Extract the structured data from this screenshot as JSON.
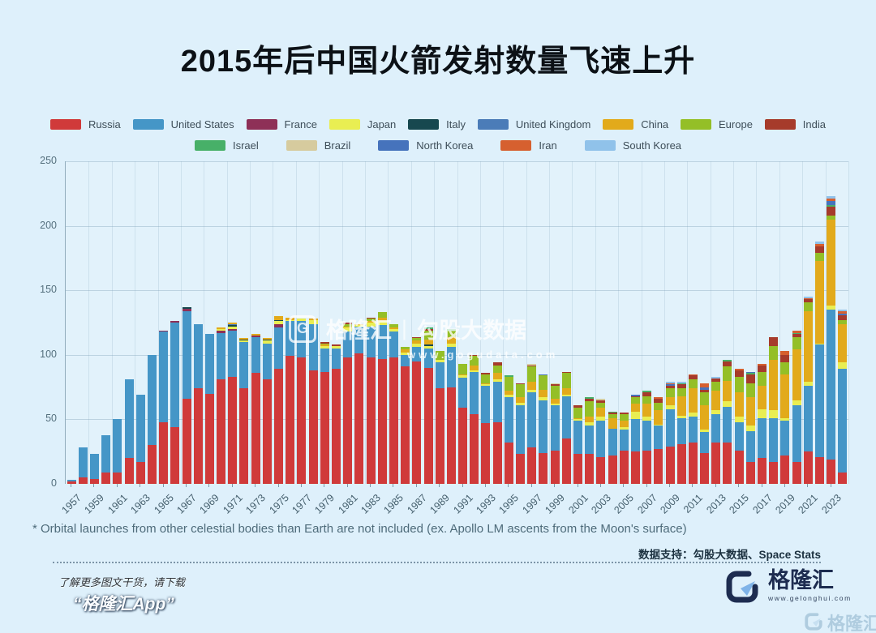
{
  "page": {
    "footnote": "* Orbital launches from other celestial bodies than Earth are not included (ex. Apollo LM ascents from the Moon's surface)",
    "data_support": "数据支持：勾股大数据、Space Stats",
    "watermark": {
      "brand": "格隆汇",
      "separator": "|",
      "name": "勾股大数据",
      "url": "www.gogudata.com",
      "logo_letter": "G"
    },
    "footer": {
      "promo_line1": "了解更多图文干货，请下载",
      "promo_line2": "“格隆汇App”",
      "brand_name": "格隆汇",
      "brand_url": "www.gelonghui.com",
      "corner_watermark": "格隆汇"
    },
    "colors": {
      "background": "#def0fb",
      "title_text": "#0c1116",
      "grid": "#7da0b9",
      "brand_navy": "#1d2c50",
      "brand_lightblue": "#7fb3e8"
    }
  },
  "chart_data": {
    "type": "bar",
    "stacked": true,
    "title": "2015年后中国火箭发射数量飞速上升",
    "xlabel": "",
    "ylabel": "",
    "ylim": [
      0,
      250
    ],
    "y_ticks": [
      0,
      50,
      100,
      150,
      200,
      250
    ],
    "grid": true,
    "legend_position": "top",
    "years_start": 1957,
    "years_end": 2024,
    "x_tick_labels": [
      "1957",
      "1959",
      "1961",
      "1963",
      "1965",
      "1967",
      "1969",
      "1971",
      "1973",
      "1975",
      "1977",
      "1979",
      "1981",
      "1983",
      "1985",
      "1987",
      "1989",
      "1991",
      "1993",
      "1995",
      "1997",
      "1999",
      "2001",
      "2003",
      "2005",
      "2007",
      "2009",
      "2011",
      "2013",
      "2015",
      "2017",
      "2019",
      "2021",
      "2023"
    ],
    "series": [
      {
        "name": "Russia",
        "color": "#d03a3a",
        "values": [
          2,
          5,
          4,
          9,
          9,
          20,
          17,
          30,
          48,
          44,
          66,
          74,
          70,
          81,
          83,
          74,
          86,
          81,
          89,
          99,
          98,
          88,
          87,
          89,
          98,
          101,
          98,
          97,
          98,
          91,
          95,
          90,
          74,
          75,
          59,
          54,
          47,
          48,
          32,
          23,
          28,
          24,
          26,
          35,
          23,
          23,
          21,
          22,
          26,
          25,
          26,
          27,
          29,
          31,
          32,
          24,
          32,
          32,
          26,
          17,
          20,
          17,
          22,
          17,
          25,
          21,
          19,
          9
        ]
      },
      {
        "name": "United States",
        "color": "#4596c7",
        "values": [
          1,
          23,
          19,
          29,
          41,
          61,
          52,
          70,
          70,
          81,
          68,
          50,
          46,
          36,
          36,
          36,
          28,
          28,
          32,
          27,
          28,
          36,
          18,
          16,
          20,
          21,
          24,
          26,
          20,
          9,
          11,
          15,
          20,
          31,
          23,
          33,
          29,
          31,
          35,
          38,
          43,
          41,
          35,
          33,
          26,
          22,
          28,
          21,
          16,
          25,
          23,
          18,
          29,
          20,
          20,
          16,
          22,
          28,
          22,
          24,
          31,
          34,
          27,
          44,
          51,
          87,
          116,
          80
        ]
      },
      {
        "name": "France",
        "color": "#8e3057",
        "values": [
          0,
          0,
          0,
          0,
          0,
          0,
          0,
          0,
          1,
          1,
          2,
          0,
          0,
          2,
          1,
          0,
          1,
          0,
          3,
          0,
          0,
          0,
          0,
          0,
          0,
          0,
          0,
          0,
          0,
          0,
          0,
          0,
          0,
          0,
          0,
          0,
          0,
          0,
          0,
          0,
          0,
          0,
          0,
          0,
          0,
          0,
          0,
          0,
          0,
          0,
          0,
          0,
          0,
          0,
          0,
          0,
          0,
          0,
          0,
          0,
          0,
          0,
          0,
          0,
          0,
          0,
          0,
          0
        ]
      },
      {
        "name": "Japan",
        "color": "#e9ee52",
        "values": [
          0,
          0,
          0,
          0,
          0,
          0,
          0,
          0,
          0,
          0,
          0,
          0,
          0,
          1,
          2,
          1,
          0,
          2,
          2,
          1,
          2,
          3,
          2,
          2,
          3,
          1,
          3,
          3,
          2,
          2,
          3,
          2,
          2,
          3,
          2,
          1,
          1,
          2,
          2,
          2,
          2,
          2,
          1,
          1,
          1,
          3,
          3,
          0,
          2,
          6,
          3,
          1,
          3,
          2,
          3,
          2,
          3,
          4,
          4,
          4,
          7,
          6,
          2,
          4,
          3,
          1,
          3,
          5
        ]
      },
      {
        "name": "Italy",
        "color": "#17484f",
        "values": [
          0,
          0,
          0,
          0,
          0,
          0,
          0,
          0,
          0,
          0,
          1,
          0,
          0,
          0,
          1,
          1,
          0,
          1,
          1,
          0,
          0,
          0,
          0,
          0,
          0,
          0,
          0,
          0,
          0,
          0,
          0,
          1,
          0,
          0,
          0,
          0,
          0,
          0,
          0,
          0,
          0,
          0,
          0,
          0,
          0,
          0,
          0,
          0,
          0,
          0,
          0,
          0,
          0,
          0,
          0,
          0,
          0,
          0,
          0,
          0,
          0,
          0,
          0,
          0,
          0,
          0,
          0,
          0
        ]
      },
      {
        "name": "United Kingdom",
        "color": "#4b7cb8",
        "values": [
          0,
          0,
          0,
          0,
          0,
          0,
          0,
          0,
          0,
          0,
          0,
          0,
          0,
          0,
          1,
          0,
          0,
          0,
          0,
          0,
          0,
          0,
          0,
          0,
          0,
          0,
          0,
          0,
          0,
          0,
          0,
          0,
          0,
          0,
          0,
          0,
          0,
          0,
          0,
          0,
          0,
          0,
          0,
          0,
          0,
          0,
          0,
          0,
          0,
          0,
          0,
          0,
          0,
          0,
          0,
          0,
          0,
          0,
          0,
          0,
          0,
          0,
          0,
          0,
          0,
          0,
          0,
          0
        ]
      },
      {
        "name": "China",
        "color": "#e2aa1b",
        "values": [
          0,
          0,
          0,
          0,
          0,
          0,
          0,
          0,
          0,
          0,
          0,
          0,
          0,
          1,
          1,
          1,
          1,
          1,
          3,
          2,
          0,
          1,
          1,
          0,
          1,
          1,
          1,
          3,
          1,
          2,
          2,
          4,
          0,
          5,
          1,
          4,
          1,
          5,
          3,
          4,
          6,
          6,
          4,
          5,
          1,
          4,
          7,
          8,
          5,
          6,
          10,
          11,
          6,
          15,
          19,
          19,
          15,
          16,
          19,
          22,
          18,
          39,
          34,
          39,
          55,
          64,
          67,
          30
        ]
      },
      {
        "name": "Europe",
        "color": "#94bf27",
        "values": [
          0,
          0,
          0,
          0,
          0,
          0,
          0,
          0,
          0,
          0,
          0,
          0,
          0,
          0,
          0,
          0,
          0,
          0,
          0,
          0,
          0,
          0,
          1,
          0,
          2,
          0,
          2,
          4,
          3,
          2,
          2,
          7,
          7,
          5,
          8,
          7,
          7,
          6,
          11,
          10,
          12,
          11,
          10,
          12,
          8,
          12,
          4,
          3,
          5,
          5,
          6,
          6,
          7,
          6,
          7,
          10,
          7,
          11,
          12,
          11,
          11,
          11,
          9,
          10,
          7,
          6,
          3,
          3
        ]
      },
      {
        "name": "India",
        "color": "#a63b2b",
        "values": [
          0,
          0,
          0,
          0,
          0,
          0,
          0,
          0,
          0,
          0,
          0,
          0,
          0,
          0,
          0,
          0,
          0,
          0,
          0,
          0,
          0,
          0,
          1,
          1,
          1,
          0,
          1,
          0,
          0,
          0,
          1,
          1,
          0,
          0,
          0,
          1,
          1,
          2,
          0,
          1,
          1,
          0,
          1,
          1,
          2,
          2,
          2,
          1,
          1,
          1,
          3,
          3,
          2,
          3,
          3,
          2,
          3,
          4,
          5,
          7,
          5,
          7,
          6,
          2,
          2,
          5,
          7,
          4
        ]
      },
      {
        "name": "Israel",
        "color": "#47b068",
        "values": [
          0,
          0,
          0,
          0,
          0,
          0,
          0,
          0,
          0,
          0,
          0,
          0,
          0,
          0,
          0,
          0,
          0,
          0,
          0,
          0,
          0,
          0,
          0,
          0,
          0,
          0,
          0,
          0,
          0,
          0,
          0,
          1,
          0,
          1,
          0,
          0,
          0,
          0,
          1,
          0,
          0,
          0,
          0,
          0,
          0,
          1,
          0,
          1,
          0,
          0,
          1,
          0,
          0,
          1,
          0,
          0,
          0,
          1,
          0,
          1,
          0,
          0,
          0,
          1,
          0,
          0,
          1,
          0
        ]
      },
      {
        "name": "Brazil",
        "color": "#d6cb9e",
        "values": [
          0,
          0,
          0,
          0,
          0,
          0,
          0,
          0,
          0,
          0,
          0,
          0,
          0,
          0,
          0,
          0,
          0,
          0,
          0,
          0,
          0,
          0,
          0,
          0,
          0,
          0,
          0,
          0,
          0,
          0,
          0,
          0,
          0,
          0,
          0,
          0,
          0,
          0,
          0,
          0,
          1,
          0,
          1,
          0,
          0,
          0,
          1,
          0,
          0,
          0,
          0,
          0,
          0,
          0,
          0,
          0,
          0,
          0,
          0,
          0,
          0,
          0,
          0,
          0,
          0,
          0,
          0,
          0
        ]
      },
      {
        "name": "North Korea",
        "color": "#4673bc",
        "values": [
          0,
          0,
          0,
          0,
          0,
          0,
          0,
          0,
          0,
          0,
          0,
          0,
          0,
          0,
          0,
          0,
          0,
          0,
          0,
          0,
          0,
          0,
          0,
          0,
          0,
          0,
          0,
          0,
          0,
          0,
          0,
          0,
          0,
          0,
          0,
          0,
          0,
          0,
          0,
          0,
          0,
          1,
          0,
          0,
          0,
          0,
          0,
          0,
          0,
          1,
          0,
          0,
          1,
          0,
          0,
          2,
          0,
          0,
          0,
          1,
          0,
          0,
          0,
          0,
          0,
          0,
          3,
          1
        ]
      },
      {
        "name": "Iran",
        "color": "#d6602f",
        "values": [
          0,
          0,
          0,
          0,
          0,
          0,
          0,
          0,
          0,
          0,
          0,
          0,
          0,
          0,
          0,
          0,
          0,
          0,
          0,
          0,
          0,
          0,
          0,
          0,
          0,
          0,
          0,
          0,
          0,
          0,
          0,
          0,
          0,
          0,
          0,
          0,
          0,
          0,
          0,
          0,
          0,
          0,
          0,
          0,
          0,
          0,
          0,
          0,
          0,
          0,
          0,
          1,
          1,
          0,
          1,
          3,
          0,
          0,
          1,
          0,
          1,
          0,
          3,
          2,
          1,
          2,
          2,
          2
        ]
      },
      {
        "name": "South Korea",
        "color": "#90c2ea",
        "values": [
          0,
          0,
          0,
          0,
          0,
          0,
          0,
          0,
          0,
          0,
          0,
          0,
          0,
          0,
          0,
          0,
          0,
          0,
          0,
          0,
          0,
          0,
          0,
          0,
          0,
          0,
          0,
          0,
          0,
          0,
          0,
          0,
          0,
          0,
          0,
          0,
          0,
          0,
          0,
          0,
          0,
          0,
          0,
          0,
          0,
          0,
          0,
          0,
          0,
          0,
          0,
          0,
          1,
          1,
          0,
          0,
          1,
          0,
          0,
          0,
          0,
          0,
          0,
          0,
          1,
          2,
          2,
          1
        ]
      }
    ]
  }
}
